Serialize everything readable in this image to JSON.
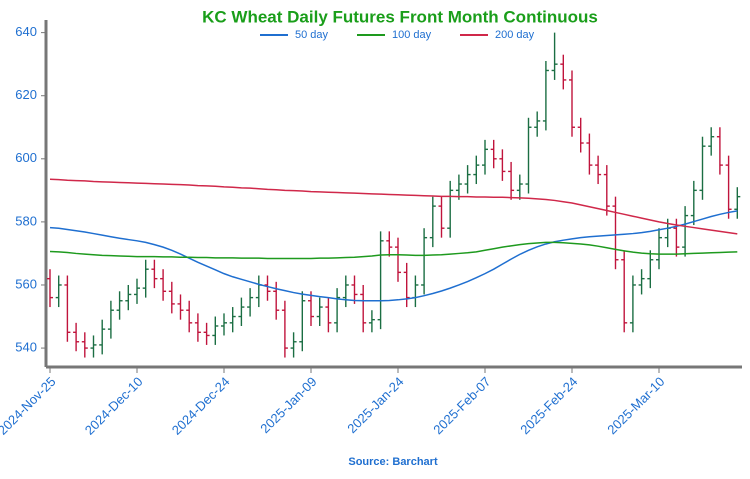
{
  "chart_data": {
    "type": "ohlc",
    "title": "KC Wheat Daily Futures Front Month Continuous",
    "source": "Source: Barchart",
    "categories": [
      "2024-Nov-25",
      null,
      null,
      null,
      null,
      null,
      null,
      null,
      null,
      null,
      "2024-Dec-10",
      null,
      null,
      null,
      null,
      null,
      null,
      null,
      null,
      null,
      "2024-Dec-24",
      null,
      null,
      null,
      null,
      null,
      null,
      null,
      null,
      null,
      "2025-Jan-09",
      null,
      null,
      null,
      null,
      null,
      null,
      null,
      null,
      null,
      "2025-Jan-24",
      null,
      null,
      null,
      null,
      null,
      null,
      null,
      null,
      null,
      "2025-Feb-07",
      null,
      null,
      null,
      null,
      null,
      null,
      null,
      null,
      null,
      "2025-Feb-24",
      null,
      null,
      null,
      null,
      null,
      null,
      null,
      null,
      null,
      "2025-Mar-10",
      null,
      null,
      null,
      null,
      null,
      null,
      null,
      null,
      null
    ],
    "ohlc": {
      "up_color": "#1b6e43",
      "down_color": "#c0143c",
      "open": [
        562,
        556,
        560,
        545,
        542,
        540,
        541,
        546,
        552,
        555,
        557,
        559,
        565,
        562,
        558,
        554,
        552,
        548,
        545,
        544,
        547,
        548,
        550,
        553,
        556,
        560,
        558,
        552,
        540,
        542,
        555,
        550,
        553,
        548,
        556,
        560,
        557,
        548,
        549,
        574,
        572,
        564,
        556,
        560,
        575,
        585,
        578,
        590,
        592,
        595,
        598,
        603,
        600,
        596,
        590,
        592,
        610,
        612,
        628,
        630,
        625,
        610,
        605,
        598,
        595,
        585,
        568,
        548,
        560,
        562,
        568,
        575,
        578,
        572,
        582,
        590,
        604,
        607,
        598,
        584
      ],
      "high": [
        565,
        563,
        563,
        548,
        545,
        544,
        549,
        555,
        558,
        560,
        562,
        568,
        568,
        565,
        561,
        557,
        555,
        551,
        548,
        550,
        551,
        553,
        556,
        559,
        563,
        563,
        561,
        555,
        545,
        558,
        558,
        556,
        556,
        559,
        563,
        563,
        560,
        552,
        577,
        577,
        575,
        567,
        563,
        578,
        588,
        588,
        593,
        595,
        598,
        601,
        606,
        606,
        603,
        599,
        595,
        613,
        615,
        631,
        640,
        633,
        628,
        613,
        608,
        601,
        598,
        588,
        571,
        563,
        565,
        571,
        578,
        581,
        581,
        585,
        593,
        607,
        610,
        610,
        601,
        591
      ],
      "low": [
        553,
        553,
        542,
        539,
        537,
        537,
        538,
        543,
        549,
        552,
        554,
        556,
        559,
        555,
        551,
        549,
        545,
        542,
        541,
        541,
        544,
        545,
        547,
        550,
        553,
        555,
        549,
        537,
        537,
        539,
        547,
        547,
        545,
        545,
        553,
        554,
        545,
        545,
        546,
        569,
        561,
        553,
        553,
        557,
        572,
        575,
        575,
        587,
        589,
        592,
        595,
        597,
        593,
        587,
        587,
        589,
        607,
        609,
        625,
        622,
        607,
        602,
        595,
        592,
        582,
        565,
        545,
        545,
        557,
        559,
        565,
        572,
        569,
        569,
        579,
        587,
        601,
        595,
        581,
        581
      ],
      "close": [
        556,
        560,
        545,
        542,
        540,
        541,
        546,
        552,
        555,
        557,
        559,
        565,
        562,
        558,
        554,
        552,
        548,
        545,
        544,
        547,
        548,
        550,
        553,
        556,
        560,
        558,
        552,
        540,
        542,
        555,
        550,
        553,
        548,
        556,
        560,
        557,
        548,
        549,
        574,
        572,
        564,
        556,
        560,
        575,
        585,
        578,
        590,
        592,
        595,
        598,
        603,
        600,
        596,
        590,
        592,
        610,
        612,
        628,
        630,
        625,
        610,
        605,
        598,
        595,
        585,
        568,
        548,
        560,
        562,
        568,
        575,
        578,
        572,
        582,
        590,
        604,
        607,
        598,
        584,
        588
      ]
    },
    "series": [
      {
        "name": "50 day",
        "color": "#1f6fd0",
        "values": [
          578.2,
          578,
          577.6,
          577.2,
          576.8,
          576.3,
          575.8,
          575.3,
          574.8,
          574.4,
          574,
          573.5,
          572.8,
          572,
          571,
          569.8,
          568.5,
          567.2,
          566,
          564.8,
          563.6,
          562.6,
          561.8,
          561,
          560.2,
          559.5,
          558.8,
          558.2,
          557.6,
          557.1,
          556.7,
          556.3,
          556,
          555.6,
          555.3,
          555.1,
          555,
          555,
          555,
          555.1,
          555.3,
          555.6,
          556,
          556.6,
          557.3,
          558.1,
          559,
          560,
          561.1,
          562.3,
          563.6,
          565,
          566.6,
          568.2,
          569.7,
          571,
          572.1,
          573,
          573.7,
          574.2,
          574.6,
          575,
          575.3,
          575.5,
          575.7,
          575.9,
          576.1,
          576.3,
          576.6,
          577,
          577.5,
          578,
          578.6,
          579.3,
          580.1,
          580.9,
          581.7,
          582.4,
          583,
          583.5
        ]
      },
      {
        "name": "100 day",
        "color": "#1e9a1e",
        "values": [
          570.6,
          570.5,
          570.3,
          570,
          569.8,
          569.6,
          569.4,
          569.3,
          569.2,
          569.1,
          569,
          569,
          569,
          568.9,
          568.9,
          568.8,
          568.8,
          568.7,
          568.7,
          568.6,
          568.6,
          568.6,
          568.5,
          568.5,
          568.5,
          568.4,
          568.4,
          568.4,
          568.4,
          568.4,
          568.4,
          568.5,
          568.5,
          568.6,
          568.7,
          568.8,
          569,
          569.2,
          569.5,
          569.6,
          569.6,
          569.5,
          569.4,
          569.4,
          569.5,
          569.6,
          569.8,
          570,
          570.2,
          570.5,
          571,
          571.5,
          572,
          572.4,
          572.8,
          573.1,
          573.3,
          573.5,
          573.5,
          573.4,
          573.2,
          573,
          572.7,
          572.3,
          571.8,
          571.3,
          570.8,
          570.4,
          570.1,
          569.9,
          569.8,
          569.8,
          569.8,
          569.9,
          570,
          570.1,
          570.2,
          570.3,
          570.4,
          570.5
        ]
      },
      {
        "name": "200 day",
        "color": "#d0284a",
        "values": [
          593.5,
          593.4,
          593.2,
          593.1,
          593,
          592.8,
          592.7,
          592.6,
          592.5,
          592.4,
          592.3,
          592.2,
          592.1,
          592,
          591.9,
          591.8,
          591.7,
          591.5,
          591.4,
          591.3,
          591.1,
          591,
          590.8,
          590.7,
          590.5,
          590.3,
          590.2,
          590,
          589.9,
          589.8,
          589.6,
          589.5,
          589.4,
          589.3,
          589.2,
          589.1,
          589,
          588.9,
          588.8,
          588.7,
          588.6,
          588.5,
          588.4,
          588.3,
          588.2,
          588.1,
          588.1,
          588,
          588,
          587.9,
          587.9,
          587.8,
          587.8,
          587.7,
          587.6,
          587.5,
          587.3,
          587.1,
          586.8,
          586.4,
          586,
          585.4,
          584.8,
          584.2,
          583.6,
          583,
          582.4,
          581.8,
          581.2,
          580.6,
          580,
          579.5,
          579,
          578.6,
          578.2,
          577.8,
          577.4,
          577,
          576.6,
          576.2
        ]
      }
    ],
    "ylim": [
      534,
      644
    ],
    "yticks": [
      540,
      560,
      580,
      600,
      620,
      640
    ]
  }
}
